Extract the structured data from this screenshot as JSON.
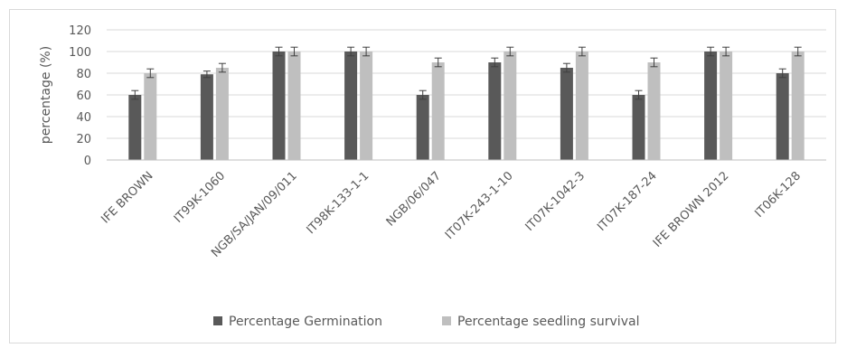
{
  "chart_data": {
    "type": "bar",
    "title": "",
    "xlabel": "",
    "ylabel": "percentage (%)",
    "ylim": [
      0,
      120
    ],
    "yticks": [
      0,
      20,
      40,
      60,
      80,
      100,
      120
    ],
    "grid": true,
    "legend_position": "bottom",
    "categories": [
      "IFE BROWN",
      "IT99K-1060",
      "NGB/SA/JAN/09/011",
      "IT98K-133-1-1",
      "NGB/06/047",
      "IT07K-243-1-10",
      "IT07K-1042-3",
      "IT07K-187-24",
      "IFE BROWN 2012",
      "IT06K-128"
    ],
    "series": [
      {
        "name": "Percentage Germination",
        "color": "#595959",
        "values": [
          60,
          79,
          100,
          100,
          60,
          90,
          85,
          60,
          100,
          80
        ],
        "error": [
          4,
          3,
          4,
          4,
          4,
          4,
          4,
          4,
          4,
          4
        ]
      },
      {
        "name": "Percentage seedling survival",
        "color": "#bfbfbf",
        "values": [
          80,
          85,
          100,
          100,
          90,
          100,
          100,
          90,
          100,
          100
        ],
        "error": [
          4,
          4,
          4,
          4,
          4,
          4,
          4,
          4,
          4,
          4
        ]
      }
    ]
  }
}
